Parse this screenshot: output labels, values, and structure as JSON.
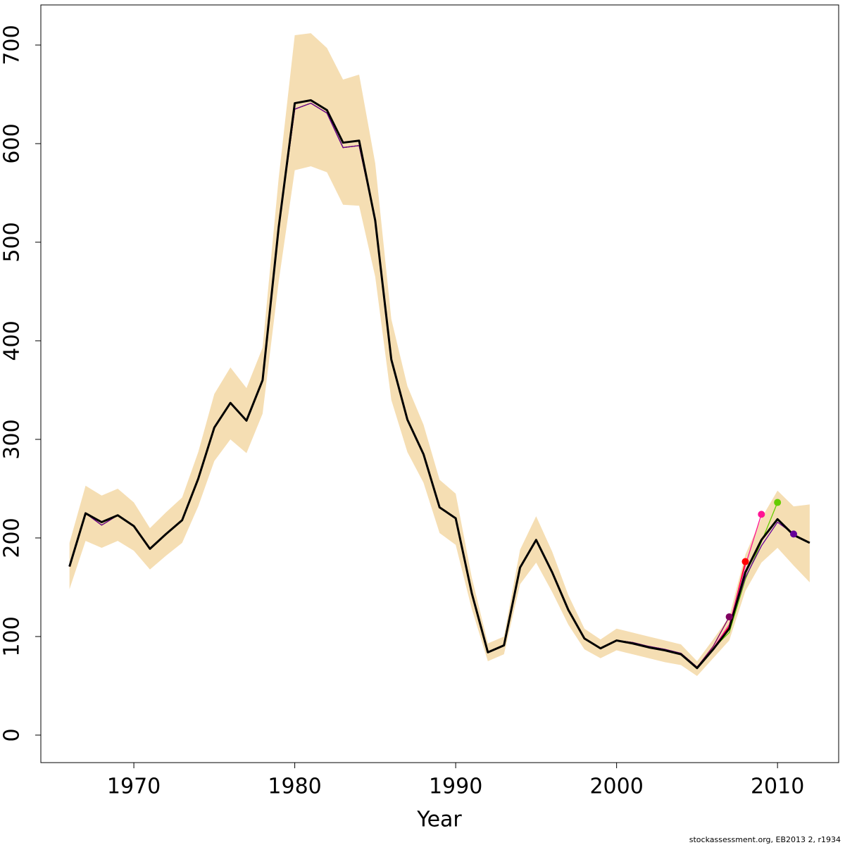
{
  "chart_data": {
    "type": "line",
    "x_label": "Year",
    "caption": "stockassessment.org, EB2013 2, r1934",
    "x": [
      1966,
      1967,
      1968,
      1969,
      1970,
      1971,
      1972,
      1973,
      1974,
      1975,
      1976,
      1977,
      1978,
      1979,
      1980,
      1981,
      1982,
      1983,
      1984,
      1985,
      1986,
      1987,
      1988,
      1989,
      1990,
      1991,
      1992,
      1993,
      1994,
      1995,
      1996,
      1997,
      1998,
      1999,
      2000,
      2001,
      2002,
      2003,
      2004,
      2005,
      2006,
      2007,
      2008,
      2009,
      2010,
      2011,
      2012
    ],
    "xlim": [
      1964.22,
      2013.8
    ],
    "ylim": [
      -27.9,
      740.7
    ],
    "xticks": [
      1970,
      1980,
      1990,
      2000,
      2010
    ],
    "yticks": [
      0,
      100,
      200,
      300,
      400,
      500,
      600,
      700
    ],
    "band": {
      "color": "#f5deb3",
      "upper": [
        195,
        253,
        243,
        250,
        236,
        210,
        226,
        241,
        287,
        346,
        373,
        352,
        393,
        565,
        710,
        712,
        697,
        665,
        670,
        580,
        422,
        354,
        315,
        259,
        245,
        160,
        93,
        100,
        188,
        222,
        186,
        142,
        108,
        97,
        108,
        104,
        100,
        96,
        92,
        75,
        97,
        120,
        183,
        220,
        248,
        232,
        234
      ],
      "lower": [
        148,
        197,
        190,
        197,
        187,
        168,
        182,
        195,
        232,
        278,
        300,
        286,
        326,
        460,
        573,
        577,
        571,
        538,
        537,
        465,
        340,
        287,
        256,
        205,
        193,
        128,
        75,
        82,
        153,
        175,
        145,
        112,
        87,
        78,
        86,
        82,
        78,
        74,
        71,
        60,
        78,
        96,
        146,
        175,
        190,
        172,
        155
      ]
    },
    "series": [
      {
        "color": "#800060",
        "values": [
          171,
          225,
          213,
          223,
          212,
          189,
          204,
          218,
          260,
          312,
          337,
          319,
          360,
          515,
          635,
          641,
          631,
          596,
          598,
          522,
          381,
          320,
          285,
          231,
          220,
          144,
          84,
          91,
          170,
          198,
          165,
          127,
          98,
          88,
          96,
          94,
          90,
          87,
          83,
          69,
          90,
          120,
          null,
          null,
          null,
          null,
          null
        ]
      },
      {
        "color": "#ff0000",
        "values": [
          171,
          225,
          213,
          223,
          212,
          189,
          204,
          218,
          260,
          312,
          337,
          319,
          360,
          515,
          635,
          641,
          631,
          596,
          598,
          522,
          381,
          320,
          285,
          231,
          220,
          144,
          84,
          91,
          170,
          198,
          165,
          127,
          98,
          88,
          96,
          94,
          90,
          87,
          83,
          69,
          88,
          110,
          176,
          null,
          null,
          null,
          null
        ]
      },
      {
        "color": "#ff1493",
        "values": [
          171,
          225,
          213,
          223,
          212,
          189,
          204,
          218,
          260,
          312,
          337,
          319,
          360,
          515,
          635,
          641,
          631,
          596,
          598,
          522,
          381,
          320,
          285,
          231,
          220,
          144,
          84,
          91,
          170,
          198,
          165,
          127,
          98,
          88,
          96,
          94,
          90,
          87,
          83,
          69,
          88,
          112,
          172,
          224,
          null,
          null,
          null
        ]
      },
      {
        "color": "#66cc00",
        "values": [
          171,
          225,
          213,
          223,
          212,
          189,
          204,
          218,
          260,
          312,
          337,
          319,
          360,
          515,
          635,
          641,
          631,
          596,
          598,
          522,
          381,
          320,
          285,
          231,
          220,
          144,
          84,
          91,
          170,
          198,
          165,
          127,
          98,
          88,
          96,
          94,
          90,
          87,
          83,
          69,
          88,
          104,
          158,
          196,
          236,
          null,
          null
        ]
      },
      {
        "color": "#660099",
        "values": [
          171,
          225,
          213,
          223,
          212,
          189,
          204,
          218,
          260,
          312,
          337,
          319,
          360,
          515,
          635,
          641,
          631,
          596,
          598,
          522,
          381,
          320,
          285,
          231,
          220,
          144,
          84,
          91,
          170,
          198,
          165,
          127,
          98,
          88,
          96,
          94,
          90,
          87,
          83,
          69,
          88,
          108,
          160,
          192,
          216,
          204,
          null
        ]
      },
      {
        "color": "#000000",
        "values": [
          171,
          225,
          216,
          223,
          212,
          189,
          204,
          218,
          260,
          312,
          337,
          319,
          360,
          515,
          641,
          644,
          634,
          601,
          603,
          522,
          381,
          320,
          285,
          231,
          220,
          144,
          84,
          91,
          170,
          198,
          165,
          127,
          98,
          88,
          96,
          93,
          89,
          86,
          82,
          68,
          87,
          108,
          165,
          198,
          219,
          203,
          195
        ]
      }
    ]
  }
}
